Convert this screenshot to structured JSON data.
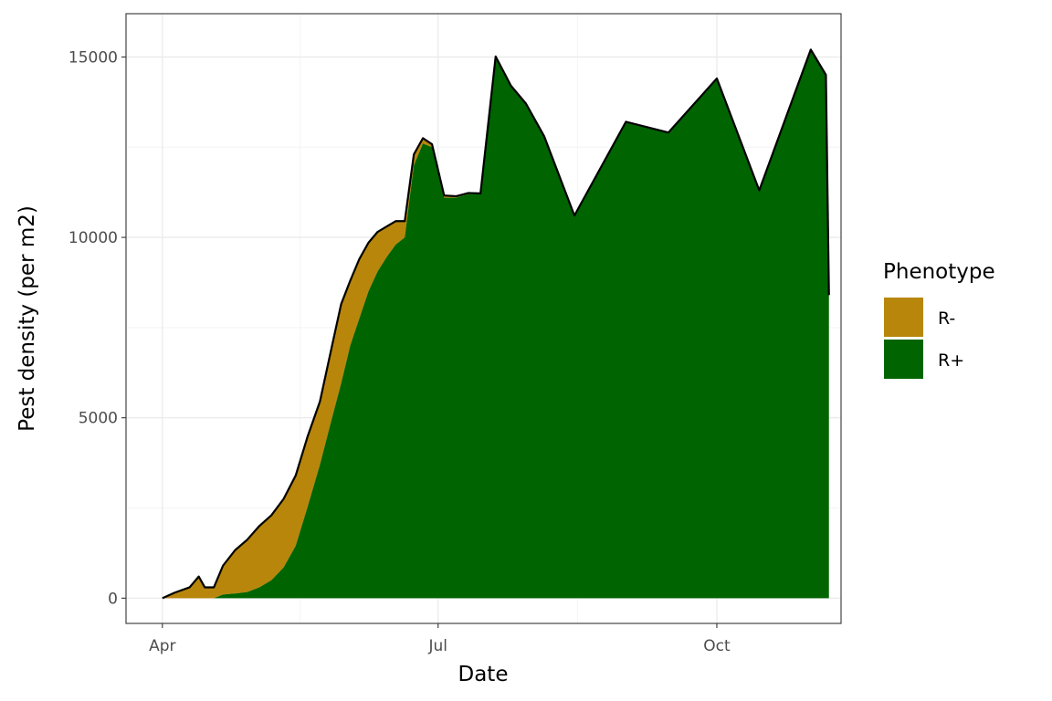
{
  "chart_data": {
    "type": "area",
    "stacked": true,
    "title": "",
    "xlabel": "Date",
    "ylabel": "Pest density (per m2)",
    "ylim": [
      -700,
      16200
    ],
    "xlim": [
      "2021-03-20",
      "2021-11-11"
    ],
    "grid": true,
    "legend": {
      "title": "Phenotype",
      "placement": "right"
    },
    "x_ticks": [
      {
        "value": "2021-04-01",
        "label": "Apr"
      },
      {
        "value": "2021-07-01",
        "label": "Jul"
      },
      {
        "value": "2021-10-01",
        "label": "Oct"
      }
    ],
    "y_ticks": [
      {
        "value": 0,
        "label": "0"
      },
      {
        "value": 5000,
        "label": "5000"
      },
      {
        "value": 10000,
        "label": "10000"
      },
      {
        "value": 15000,
        "label": "15000"
      }
    ],
    "series": [
      {
        "name": "R-",
        "color": "#B8860B",
        "points": [
          [
            "2021-04-01",
            0
          ],
          [
            "2021-04-05",
            150
          ],
          [
            "2021-04-10",
            300
          ],
          [
            "2021-04-13",
            600
          ],
          [
            "2021-04-15",
            300
          ],
          [
            "2021-04-18",
            300
          ],
          [
            "2021-04-21",
            800
          ],
          [
            "2021-04-25",
            1200
          ],
          [
            "2021-04-29",
            1450
          ],
          [
            "2021-05-03",
            1700
          ],
          [
            "2021-05-07",
            1800
          ],
          [
            "2021-05-11",
            1900
          ],
          [
            "2021-05-15",
            1950
          ],
          [
            "2021-05-19",
            1950
          ],
          [
            "2021-05-23",
            1750
          ],
          [
            "2021-05-27",
            2000
          ],
          [
            "2021-05-30",
            2200
          ],
          [
            "2021-06-02",
            1800
          ],
          [
            "2021-06-05",
            1650
          ],
          [
            "2021-06-08",
            1350
          ],
          [
            "2021-06-11",
            1100
          ],
          [
            "2021-06-14",
            850
          ],
          [
            "2021-06-17",
            650
          ],
          [
            "2021-06-20",
            450
          ],
          [
            "2021-06-23",
            300
          ],
          [
            "2021-06-26",
            150
          ],
          [
            "2021-06-29",
            80
          ],
          [
            "2021-07-03",
            60
          ],
          [
            "2021-07-07",
            40
          ],
          [
            "2021-07-11",
            30
          ],
          [
            "2021-07-15",
            20
          ],
          [
            "2021-07-20",
            15
          ],
          [
            "2021-07-25",
            10
          ],
          [
            "2021-07-30",
            8
          ],
          [
            "2021-08-05",
            5
          ],
          [
            "2021-08-15",
            5
          ],
          [
            "2021-09-01",
            5
          ],
          [
            "2021-09-15",
            5
          ],
          [
            "2021-10-01",
            5
          ],
          [
            "2021-10-15",
            5
          ],
          [
            "2021-11-01",
            5
          ],
          [
            "2021-11-06",
            5
          ],
          [
            "2021-11-07",
            0
          ]
        ]
      },
      {
        "name": "R+",
        "color": "#006400",
        "points": [
          [
            "2021-04-01",
            0
          ],
          [
            "2021-04-05",
            0
          ],
          [
            "2021-04-10",
            0
          ],
          [
            "2021-04-13",
            0
          ],
          [
            "2021-04-15",
            0
          ],
          [
            "2021-04-18",
            0
          ],
          [
            "2021-04-21",
            100
          ],
          [
            "2021-04-25",
            130
          ],
          [
            "2021-04-29",
            170
          ],
          [
            "2021-05-03",
            300
          ],
          [
            "2021-05-07",
            500
          ],
          [
            "2021-05-11",
            850
          ],
          [
            "2021-05-15",
            1450
          ],
          [
            "2021-05-19",
            2550
          ],
          [
            "2021-05-23",
            3700
          ],
          [
            "2021-05-27",
            5000
          ],
          [
            "2021-05-30",
            5950
          ],
          [
            "2021-06-02",
            7000
          ],
          [
            "2021-06-05",
            7750
          ],
          [
            "2021-06-08",
            8500
          ],
          [
            "2021-06-11",
            9050
          ],
          [
            "2021-06-14",
            9450
          ],
          [
            "2021-06-17",
            9800
          ],
          [
            "2021-06-20",
            10000
          ],
          [
            "2021-06-23",
            12000
          ],
          [
            "2021-06-26",
            12600
          ],
          [
            "2021-06-29",
            12500
          ],
          [
            "2021-07-03",
            11100
          ],
          [
            "2021-07-07",
            11100
          ],
          [
            "2021-07-11",
            11200
          ],
          [
            "2021-07-15",
            11200
          ],
          [
            "2021-07-20",
            15000
          ],
          [
            "2021-07-25",
            14200
          ],
          [
            "2021-07-30",
            13700
          ],
          [
            "2021-08-05",
            12800
          ],
          [
            "2021-08-15",
            10600
          ],
          [
            "2021-09-01",
            13200
          ],
          [
            "2021-09-15",
            12900
          ],
          [
            "2021-10-01",
            14400
          ],
          [
            "2021-10-15",
            11300
          ],
          [
            "2021-11-01",
            15200
          ],
          [
            "2021-11-06",
            14500
          ],
          [
            "2021-11-07",
            8400
          ]
        ]
      }
    ]
  }
}
